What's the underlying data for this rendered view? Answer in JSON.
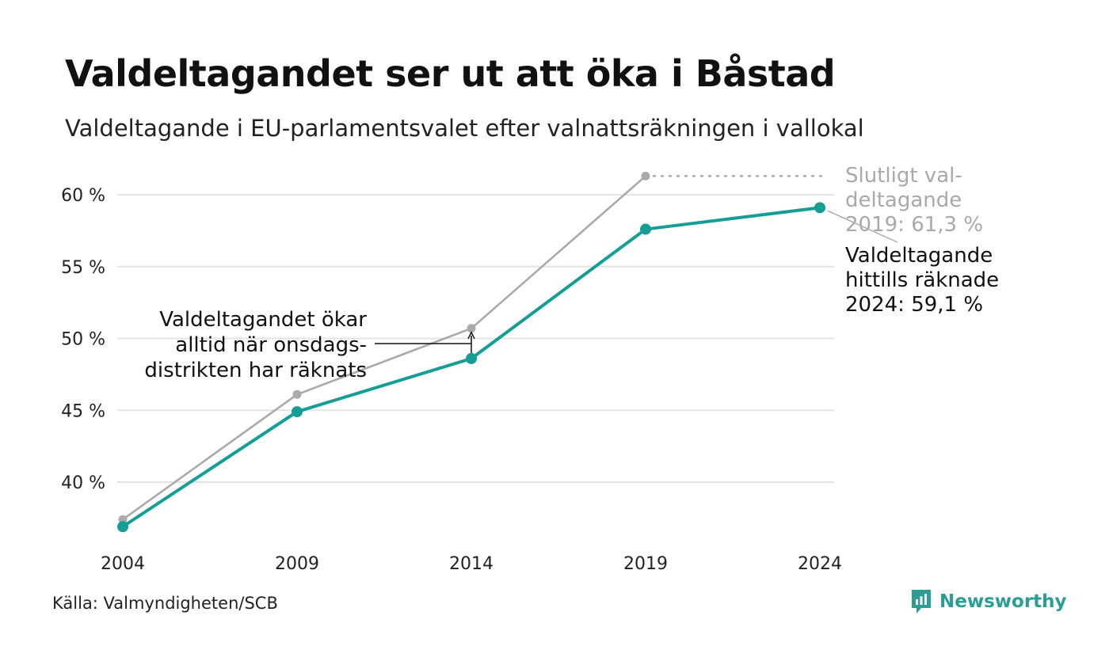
{
  "header": {
    "title": "Valdeltagandet ser ut att öka i Båstad",
    "subtitle": "Valdeltagande i EU-parlamentsvalet efter valnattsräkningen i vallokal"
  },
  "footer": {
    "source": "Källa: Valmyndigheten/SCB",
    "brand": "Newsworthy",
    "brand_icon": "newsworthy-logo-icon",
    "brand_color": "#2a9d95"
  },
  "chart_data": {
    "type": "line",
    "x": [
      "2004",
      "2009",
      "2014",
      "2019",
      "2024"
    ],
    "y_ticks": [
      "40 %",
      "45 %",
      "50 %",
      "55 %",
      "60 %"
    ],
    "y_tick_values": [
      40,
      45,
      50,
      55,
      60
    ],
    "ylim": [
      35,
      63
    ],
    "grid": true,
    "series": [
      {
        "key": "final",
        "color": "#aaaaaa",
        "values": [
          37.4,
          46.1,
          50.7,
          61.3,
          null
        ],
        "label": [
          "Slutligt val-",
          "deltagande",
          "2019: 61,3 %"
        ]
      },
      {
        "key": "preliminary",
        "color": "#159e96",
        "values": [
          36.9,
          44.9,
          48.6,
          57.6,
          59.1
        ],
        "label": [
          "Valdeltagande",
          "hittills räknade",
          "2024: 59,1 %"
        ]
      }
    ],
    "annotation": {
      "text": [
        "Valdeltagandet ökar",
        "alltid när onsdags-",
        "distrikten har räknats"
      ]
    }
  }
}
